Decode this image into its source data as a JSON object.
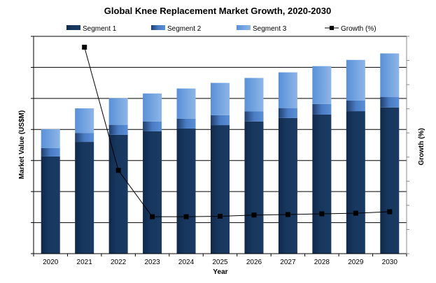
{
  "chart_data": {
    "type": "bar",
    "stacked": true,
    "title": "Global Knee Replacement Market Growth, 2020-2030",
    "xlabel": "Year",
    "ylabel": "Market Value (US$M)",
    "y2label": "Growth (%)",
    "categories": [
      "2020",
      "2021",
      "2022",
      "2023",
      "2024",
      "2025",
      "2026",
      "2027",
      "2028",
      "2029",
      "2030"
    ],
    "series": [
      {
        "name": "Segment 1",
        "type": "bar",
        "color": "#17375e",
        "values": [
          31.3,
          36.0,
          38.3,
          39.4,
          40.3,
          41.4,
          42.6,
          43.7,
          44.8,
          45.9,
          47.1
        ]
      },
      {
        "name": "Segment 2",
        "type": "bar",
        "color": "#3f6fb5",
        "values": [
          2.7,
          2.9,
          3.2,
          3.2,
          3.2,
          3.2,
          3.2,
          3.2,
          3.4,
          3.4,
          3.4
        ]
      },
      {
        "name": "Segment 3",
        "type": "bar",
        "color": "#6a9fde",
        "values": [
          6.1,
          7.9,
          8.6,
          9.0,
          9.7,
          10.4,
          10.8,
          11.5,
          12.2,
          13.1,
          14.0
        ]
      },
      {
        "name": "Growth (%)",
        "type": "line",
        "axis": "right",
        "color": "#000000",
        "values": [
          null,
          17.1,
          6.9,
          3.06,
          3.06,
          3.1,
          3.2,
          3.24,
          3.3,
          3.35,
          3.47
        ]
      }
    ],
    "ylim": [
      0,
      70
    ],
    "y2lim": [
      0,
      18
    ],
    "grid": true,
    "legend": "top"
  }
}
